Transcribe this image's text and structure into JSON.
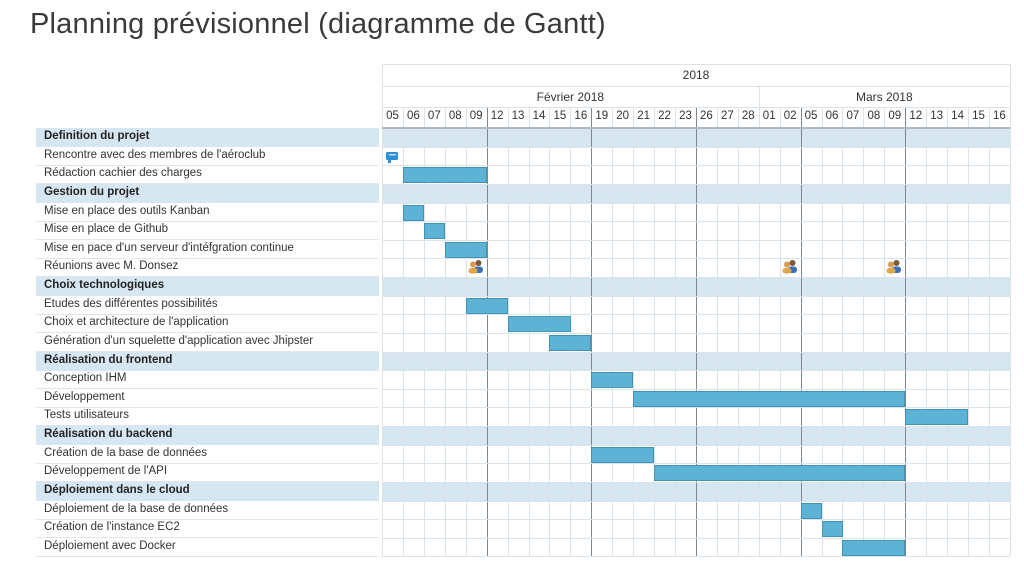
{
  "title": "Planning prévisionnel (diagramme de Gantt)",
  "colors": {
    "bar": "#5eb3d4",
    "bar_border": "#3e93b8",
    "group_bg": "#d6e7f2",
    "weekend_bg": "#eef5fa",
    "grid": "#dbe3ea",
    "week_line": "#7d8790"
  },
  "timeline": {
    "year": "2018",
    "months": [
      {
        "name": "Février 2018",
        "from": 0,
        "to": 18
      },
      {
        "name": "Mars 2018",
        "from": 18,
        "to": 30
      }
    ],
    "days": [
      "05",
      "06",
      "07",
      "08",
      "09",
      "12",
      "13",
      "14",
      "15",
      "16",
      "19",
      "20",
      "21",
      "22",
      "23",
      "26",
      "27",
      "28",
      "01",
      "02",
      "05",
      "06",
      "07",
      "08",
      "09",
      "12",
      "13",
      "14",
      "15",
      "16"
    ]
  },
  "rows": [
    {
      "type": "group",
      "label": "Definition du projet"
    },
    {
      "type": "task",
      "label": "Rencontre avec des membres de l'aéroclub",
      "milestone": 0
    },
    {
      "type": "task",
      "label": "Rédaction cachier des charges",
      "start": 1,
      "end": 5
    },
    {
      "type": "group",
      "label": "Gestion du projet"
    },
    {
      "type": "task",
      "label": "Mise en place des outils Kanban",
      "start": 1,
      "end": 2
    },
    {
      "type": "task",
      "label": "Mise en place de Github",
      "start": 2,
      "end": 3
    },
    {
      "type": "task",
      "label": "Mise en pace d'un serveur d'intéfgration continue",
      "start": 3,
      "end": 5
    },
    {
      "type": "task",
      "label": "Réunions avec M. Donsez",
      "meetings": [
        4,
        19,
        24
      ]
    },
    {
      "type": "group",
      "label": "Choix technologiques"
    },
    {
      "type": "task",
      "label": "Etudes des différentes possibilités",
      "start": 4,
      "end": 6
    },
    {
      "type": "task",
      "label": "Choix et architecture de l'application",
      "start": 6,
      "end": 9
    },
    {
      "type": "task",
      "label": "Génération d'un squelette d'application avec Jhipster",
      "start": 8,
      "end": 10
    },
    {
      "type": "group",
      "label": "Réalisation du frontend"
    },
    {
      "type": "task",
      "label": "Conception IHM",
      "start": 10,
      "end": 12
    },
    {
      "type": "task",
      "label": "Développement",
      "start": 12,
      "end": 25
    },
    {
      "type": "task",
      "label": "Tests utilisateurs",
      "start": 25,
      "end": 28
    },
    {
      "type": "group",
      "label": "Réalisation du backend"
    },
    {
      "type": "task",
      "label": "Création de la base de données",
      "start": 10,
      "end": 13
    },
    {
      "type": "task",
      "label": "Développement de l'API",
      "start": 13,
      "end": 25
    },
    {
      "type": "group",
      "label": "Déploiement dans le cloud"
    },
    {
      "type": "task",
      "label": "Déploiement de la base de données",
      "start": 20,
      "end": 21
    },
    {
      "type": "task",
      "label": "Création de l'instance EC2",
      "start": 21,
      "end": 22
    },
    {
      "type": "task",
      "label": "Déploiement avec Docker",
      "start": 22,
      "end": 25
    }
  ]
}
